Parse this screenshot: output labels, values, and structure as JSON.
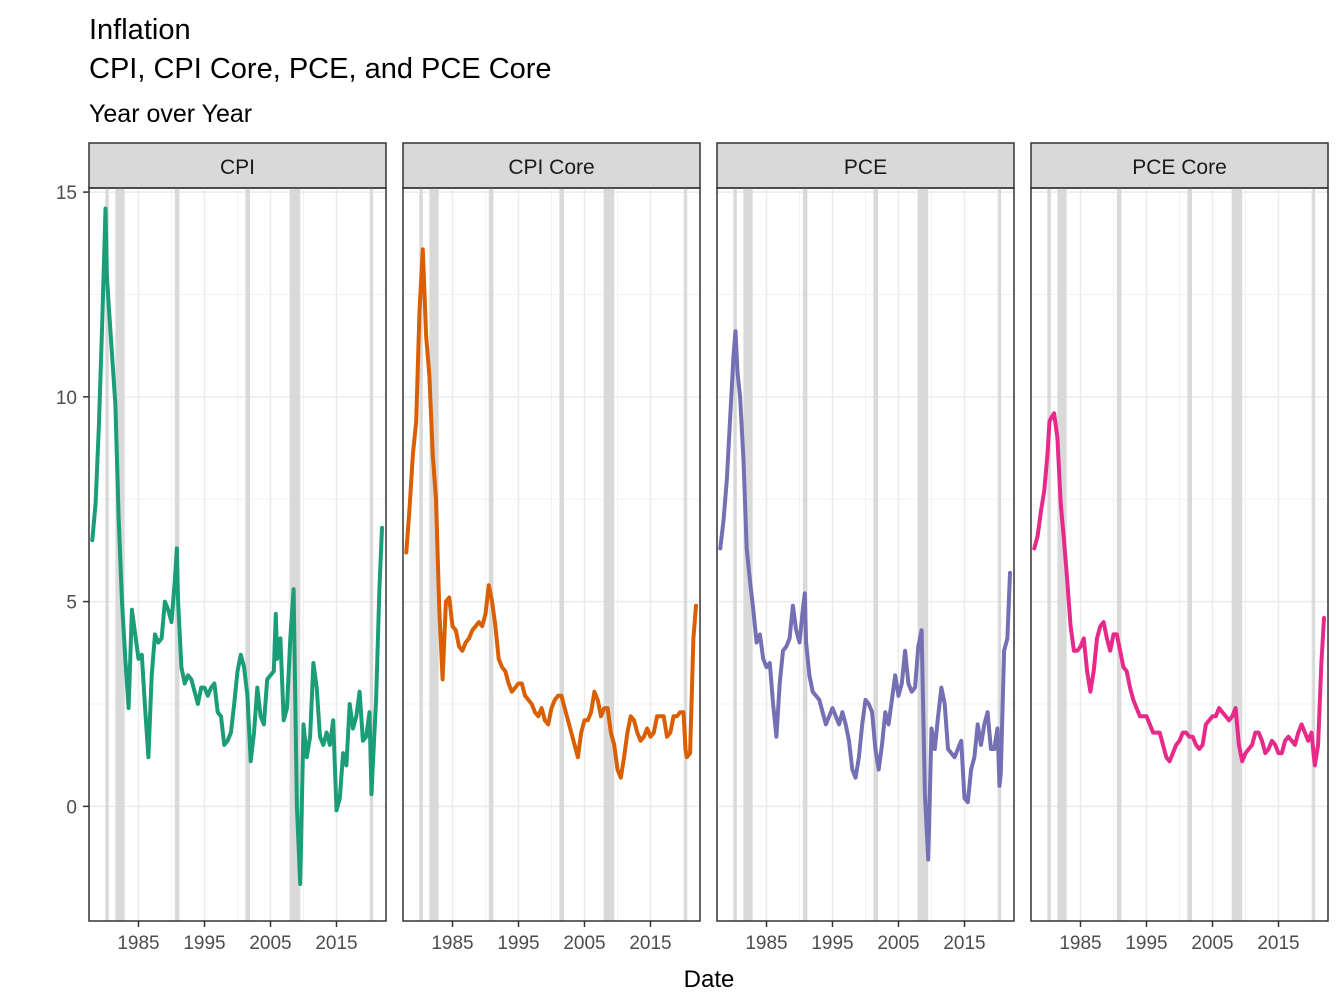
{
  "chart_data": {
    "type": "line",
    "title": "Inflation",
    "title_line2": "CPI, CPI Core, PCE, and PCE Core",
    "subtitle": "Year over Year",
    "xlabel": "Date",
    "ylabel": "",
    "xlim": [
      1977.5,
      2022.5
    ],
    "ylim": [
      -2.8,
      15.1
    ],
    "x_ticks": [
      1985,
      1995,
      2005,
      2015
    ],
    "x_tick_labels": [
      "1985",
      "1995",
      "2005",
      "2015"
    ],
    "y_ticks": [
      0,
      5,
      10,
      15
    ],
    "y_tick_labels": [
      "0",
      "5",
      "10",
      "15"
    ],
    "grid": true,
    "legend": "none",
    "recessions": [
      [
        1980.0,
        1980.5
      ],
      [
        1981.5,
        1982.9
      ],
      [
        1990.5,
        1991.2
      ],
      [
        2001.2,
        2001.9
      ],
      [
        2007.9,
        2009.5
      ],
      [
        2020.1,
        2020.3
      ]
    ],
    "recession_color": "#d9d9d9",
    "facets": [
      {
        "name": "CPI",
        "color": "#1b9e77",
        "x": [
          1978.0,
          1978.5,
          1979.0,
          1979.5,
          1980.0,
          1980.2,
          1980.5,
          1981.0,
          1981.5,
          1982.0,
          1982.5,
          1983.0,
          1983.5,
          1984.0,
          1984.5,
          1985.0,
          1985.5,
          1986.0,
          1986.5,
          1987.0,
          1987.5,
          1988.0,
          1988.5,
          1989.0,
          1989.5,
          1990.0,
          1990.5,
          1990.8,
          1991.0,
          1991.5,
          1992.0,
          1992.5,
          1993.0,
          1993.5,
          1994.0,
          1994.5,
          1995.0,
          1995.5,
          1996.0,
          1996.5,
          1997.0,
          1997.5,
          1998.0,
          1998.5,
          1999.0,
          1999.5,
          2000.0,
          2000.5,
          2001.0,
          2001.5,
          2002.0,
          2002.5,
          2003.0,
          2003.5,
          2004.0,
          2004.5,
          2005.0,
          2005.5,
          2005.8,
          2006.0,
          2006.5,
          2007.0,
          2007.5,
          2008.0,
          2008.5,
          2009.0,
          2009.5,
          2010.0,
          2010.5,
          2011.0,
          2011.5,
          2012.0,
          2012.5,
          2013.0,
          2013.5,
          2014.0,
          2014.5,
          2015.0,
          2015.5,
          2016.0,
          2016.5,
          2017.0,
          2017.5,
          2018.0,
          2018.5,
          2019.0,
          2019.5,
          2020.0,
          2020.3,
          2020.5,
          2021.0,
          2021.5,
          2021.9
        ],
        "values": [
          6.5,
          7.4,
          9.3,
          11.8,
          14.6,
          13.0,
          12.2,
          11.0,
          9.8,
          7.0,
          5.0,
          3.6,
          2.4,
          4.8,
          4.2,
          3.6,
          3.7,
          2.4,
          1.2,
          3.2,
          4.2,
          4.0,
          4.1,
          5.0,
          4.8,
          4.5,
          5.5,
          6.3,
          5.0,
          3.4,
          3.0,
          3.2,
          3.1,
          2.8,
          2.5,
          2.9,
          2.9,
          2.7,
          2.9,
          3.0,
          2.3,
          2.2,
          1.5,
          1.6,
          1.8,
          2.5,
          3.3,
          3.7,
          3.4,
          2.7,
          1.1,
          1.8,
          2.9,
          2.2,
          2.0,
          3.1,
          3.2,
          3.3,
          4.7,
          3.6,
          4.1,
          2.1,
          2.4,
          4.1,
          5.3,
          0.0,
          -1.9,
          2.0,
          1.2,
          1.7,
          3.5,
          2.9,
          1.7,
          1.5,
          1.8,
          1.5,
          2.1,
          -0.1,
          0.2,
          1.3,
          1.0,
          2.5,
          1.9,
          2.2,
          2.8,
          1.6,
          1.7,
          2.3,
          0.3,
          1.0,
          2.6,
          5.3,
          6.8
        ]
      },
      {
        "name": "CPI Core",
        "color": "#d95f02",
        "x": [
          1978.0,
          1978.5,
          1979.0,
          1979.5,
          1980.0,
          1980.5,
          1981.0,
          1981.5,
          1982.0,
          1982.5,
          1983.0,
          1983.5,
          1984.0,
          1984.5,
          1985.0,
          1985.5,
          1986.0,
          1986.5,
          1987.0,
          1987.5,
          1988.0,
          1988.5,
          1989.0,
          1989.5,
          1990.0,
          1990.5,
          1991.0,
          1991.5,
          1992.0,
          1992.5,
          1993.0,
          1993.5,
          1994.0,
          1994.5,
          1995.0,
          1995.5,
          1996.0,
          1996.5,
          1997.0,
          1997.5,
          1998.0,
          1998.5,
          1999.0,
          1999.5,
          2000.0,
          2000.5,
          2001.0,
          2001.5,
          2002.0,
          2002.5,
          2003.0,
          2003.5,
          2004.0,
          2004.5,
          2005.0,
          2005.5,
          2006.0,
          2006.5,
          2007.0,
          2007.5,
          2008.0,
          2008.5,
          2009.0,
          2009.5,
          2010.0,
          2010.5,
          2011.0,
          2011.5,
          2012.0,
          2012.5,
          2013.0,
          2013.5,
          2014.0,
          2014.5,
          2015.0,
          2015.5,
          2016.0,
          2016.5,
          2017.0,
          2017.5,
          2018.0,
          2018.5,
          2019.0,
          2019.5,
          2020.0,
          2020.3,
          2020.5,
          2021.0,
          2021.5,
          2021.9
        ],
        "values": [
          6.2,
          7.3,
          8.6,
          9.4,
          12.1,
          13.6,
          11.5,
          10.5,
          8.6,
          7.5,
          4.8,
          3.1,
          5.0,
          5.1,
          4.4,
          4.3,
          3.9,
          3.8,
          4.0,
          4.1,
          4.3,
          4.4,
          4.5,
          4.4,
          4.7,
          5.4,
          5.0,
          4.4,
          3.6,
          3.4,
          3.3,
          3.0,
          2.8,
          2.9,
          3.0,
          3.0,
          2.7,
          2.6,
          2.5,
          2.3,
          2.2,
          2.4,
          2.1,
          2.0,
          2.4,
          2.6,
          2.7,
          2.7,
          2.4,
          2.1,
          1.8,
          1.5,
          1.2,
          1.8,
          2.1,
          2.1,
          2.3,
          2.8,
          2.6,
          2.2,
          2.4,
          2.4,
          1.8,
          1.5,
          0.9,
          0.7,
          1.2,
          1.8,
          2.2,
          2.1,
          1.8,
          1.6,
          1.7,
          1.9,
          1.7,
          1.8,
          2.2,
          2.2,
          2.2,
          1.7,
          1.8,
          2.2,
          2.2,
          2.3,
          2.3,
          1.4,
          1.2,
          1.3,
          4.1,
          4.9
        ]
      },
      {
        "name": "PCE",
        "color": "#7570b3",
        "x": [
          1978.0,
          1978.5,
          1979.0,
          1979.5,
          1980.0,
          1980.3,
          1980.6,
          1981.0,
          1981.5,
          1982.0,
          1982.5,
          1983.0,
          1983.5,
          1984.0,
          1984.5,
          1985.0,
          1985.5,
          1986.0,
          1986.5,
          1987.0,
          1987.5,
          1988.0,
          1988.5,
          1989.0,
          1989.5,
          1990.0,
          1990.5,
          1990.8,
          1991.0,
          1991.5,
          1992.0,
          1992.5,
          1993.0,
          1993.5,
          1994.0,
          1994.5,
          1995.0,
          1995.5,
          1996.0,
          1996.5,
          1997.0,
          1997.5,
          1998.0,
          1998.5,
          1999.0,
          1999.5,
          2000.0,
          2000.5,
          2001.0,
          2001.5,
          2002.0,
          2002.5,
          2003.0,
          2003.5,
          2004.0,
          2004.5,
          2005.0,
          2005.5,
          2006.0,
          2006.5,
          2007.0,
          2007.5,
          2008.0,
          2008.5,
          2009.0,
          2009.5,
          2010.0,
          2010.5,
          2011.0,
          2011.5,
          2012.0,
          2012.5,
          2013.0,
          2013.5,
          2014.0,
          2014.5,
          2015.0,
          2015.5,
          2016.0,
          2016.5,
          2017.0,
          2017.5,
          2018.0,
          2018.5,
          2019.0,
          2019.5,
          2020.0,
          2020.3,
          2020.5,
          2021.0,
          2021.5,
          2021.9
        ],
        "values": [
          6.3,
          7.0,
          8.0,
          9.5,
          11.0,
          11.6,
          10.6,
          10.0,
          8.5,
          6.3,
          5.5,
          4.8,
          4.0,
          4.2,
          3.6,
          3.4,
          3.5,
          2.5,
          1.7,
          3.0,
          3.8,
          3.9,
          4.1,
          4.9,
          4.3,
          4.0,
          4.8,
          5.2,
          4.0,
          3.2,
          2.8,
          2.7,
          2.6,
          2.3,
          2.0,
          2.2,
          2.4,
          2.2,
          2.0,
          2.3,
          2.0,
          1.6,
          0.9,
          0.7,
          1.2,
          2.0,
          2.6,
          2.5,
          2.3,
          1.4,
          0.9,
          1.5,
          2.3,
          2.0,
          2.6,
          3.2,
          2.7,
          3.0,
          3.8,
          3.0,
          2.8,
          2.9,
          3.9,
          4.3,
          0.3,
          -1.3,
          1.9,
          1.4,
          2.2,
          2.9,
          2.5,
          1.4,
          1.3,
          1.2,
          1.4,
          1.6,
          0.2,
          0.1,
          0.9,
          1.2,
          2.0,
          1.5,
          2.0,
          2.3,
          1.4,
          1.4,
          1.9,
          0.5,
          0.8,
          3.8,
          4.1,
          5.7
        ]
      },
      {
        "name": "PCE Core",
        "color": "#e7298a",
        "x": [
          1978.0,
          1978.5,
          1979.0,
          1979.5,
          1980.0,
          1980.3,
          1980.6,
          1981.0,
          1981.5,
          1982.0,
          1982.5,
          1983.0,
          1983.5,
          1984.0,
          1984.5,
          1985.0,
          1985.5,
          1986.0,
          1986.5,
          1987.0,
          1987.5,
          1988.0,
          1988.5,
          1989.0,
          1989.5,
          1990.0,
          1990.5,
          1991.0,
          1991.5,
          1992.0,
          1992.5,
          1993.0,
          1993.5,
          1994.0,
          1994.5,
          1995.0,
          1995.5,
          1996.0,
          1996.5,
          1997.0,
          1997.5,
          1998.0,
          1998.5,
          1999.0,
          1999.5,
          2000.0,
          2000.5,
          2001.0,
          2001.5,
          2002.0,
          2002.5,
          2003.0,
          2003.5,
          2004.0,
          2004.5,
          2005.0,
          2005.5,
          2006.0,
          2006.5,
          2007.0,
          2007.5,
          2008.0,
          2008.5,
          2009.0,
          2009.5,
          2010.0,
          2010.5,
          2011.0,
          2011.5,
          2012.0,
          2012.5,
          2013.0,
          2013.5,
          2014.0,
          2014.5,
          2015.0,
          2015.5,
          2016.0,
          2016.5,
          2017.0,
          2017.5,
          2018.0,
          2018.5,
          2019.0,
          2019.5,
          2020.0,
          2020.3,
          2020.5,
          2021.0,
          2021.5,
          2021.9
        ],
        "values": [
          6.3,
          6.6,
          7.2,
          7.7,
          8.6,
          9.4,
          9.5,
          9.6,
          9.0,
          7.4,
          6.5,
          5.5,
          4.4,
          3.8,
          3.8,
          3.9,
          4.1,
          3.3,
          2.8,
          3.3,
          4.1,
          4.4,
          4.5,
          4.1,
          3.8,
          4.2,
          4.2,
          3.8,
          3.4,
          3.3,
          2.9,
          2.6,
          2.4,
          2.2,
          2.2,
          2.2,
          2.0,
          1.8,
          1.8,
          1.8,
          1.5,
          1.2,
          1.1,
          1.3,
          1.5,
          1.6,
          1.8,
          1.8,
          1.7,
          1.7,
          1.5,
          1.4,
          1.5,
          2.0,
          2.1,
          2.2,
          2.2,
          2.4,
          2.3,
          2.2,
          2.1,
          2.2,
          2.4,
          1.5,
          1.1,
          1.3,
          1.4,
          1.5,
          1.8,
          1.8,
          1.6,
          1.3,
          1.4,
          1.6,
          1.5,
          1.3,
          1.3,
          1.6,
          1.7,
          1.6,
          1.5,
          1.8,
          2.0,
          1.8,
          1.6,
          1.8,
          1.3,
          1.0,
          1.5,
          3.5,
          4.6
        ]
      }
    ]
  }
}
